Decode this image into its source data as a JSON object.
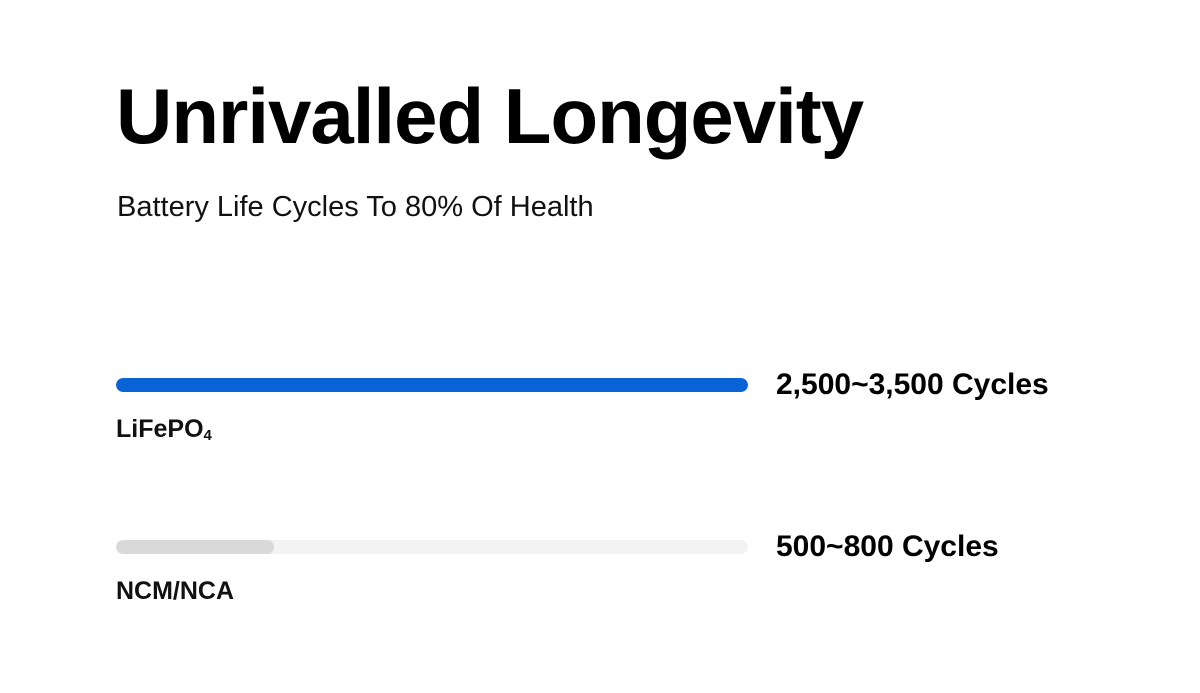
{
  "chart_data": {
    "type": "bar",
    "title": "Unrivalled Longevity",
    "subtitle": "Battery Life Cycles To 80% Of Health",
    "orientation": "horizontal",
    "categories": [
      "LiFePO4",
      "NCM/NCA"
    ],
    "series": [
      {
        "values": [
          {
            "label": "2,500~3,500 Cycles",
            "min": 2500,
            "max": 3500,
            "fraction": 1.0,
            "color": "#0a63d6"
          },
          {
            "label": "500~800 Cycles",
            "min": 500,
            "max": 800,
            "fraction": 0.25,
            "color": "#d9d9d9"
          }
        ]
      }
    ],
    "track_color": "#f3f3f3"
  },
  "labels": {
    "lifepo_main": "LiFePO",
    "lifepo_sub": "4",
    "ncm": "NCM/NCA"
  }
}
